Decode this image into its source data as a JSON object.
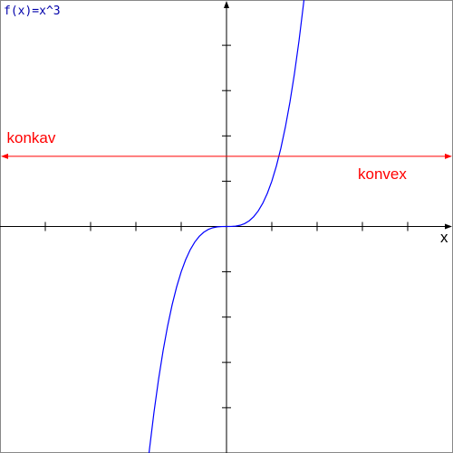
{
  "chart_data": {
    "type": "line",
    "title": "f(x)=x^3",
    "xlabel": "x",
    "ylabel": "",
    "xlim": [
      -5,
      5
    ],
    "ylim": [
      -5,
      5
    ],
    "x_ticks": [
      -4,
      -3,
      -2,
      -1,
      1,
      2,
      3,
      4
    ],
    "y_ticks": [
      -4,
      -3,
      -2,
      -1,
      1,
      2,
      3,
      4
    ],
    "grid": false,
    "series": [
      {
        "function": "x^3",
        "color": "#0000ff",
        "points": [
          [
            -1.7,
            -4.913
          ],
          [
            -1.6,
            -4.096
          ],
          [
            -1.5,
            -3.375
          ],
          [
            -1.4,
            -2.744
          ],
          [
            -1.3,
            -2.197
          ],
          [
            -1.2,
            -1.728
          ],
          [
            -1.1,
            -1.331
          ],
          [
            -1.0,
            -1.0
          ],
          [
            -0.9,
            -0.729
          ],
          [
            -0.8,
            -0.512
          ],
          [
            -0.7,
            -0.343
          ],
          [
            -0.6,
            -0.216
          ],
          [
            -0.5,
            -0.125
          ],
          [
            -0.4,
            -0.064
          ],
          [
            -0.3,
            -0.027
          ],
          [
            -0.2,
            -0.008
          ],
          [
            -0.1,
            -0.001
          ],
          [
            0,
            0
          ],
          [
            0.1,
            0.001
          ],
          [
            0.2,
            0.008
          ],
          [
            0.3,
            0.027
          ],
          [
            0.4,
            0.064
          ],
          [
            0.5,
            0.125
          ],
          [
            0.6,
            0.216
          ],
          [
            0.7,
            0.343
          ],
          [
            0.8,
            0.512
          ],
          [
            0.9,
            0.729
          ],
          [
            1.0,
            1.0
          ],
          [
            1.1,
            1.331
          ],
          [
            1.2,
            1.728
          ],
          [
            1.3,
            2.197
          ],
          [
            1.4,
            2.744
          ],
          [
            1.5,
            3.375
          ],
          [
            1.6,
            4.096
          ],
          [
            1.7,
            4.913
          ]
        ]
      }
    ],
    "reference_line": {
      "type": "double-arrow",
      "y": 1.55,
      "x_range": [
        -5,
        5
      ],
      "color": "#ff0000"
    },
    "annotations": [
      {
        "text": "konkav",
        "x": -4.85,
        "y": 1.85,
        "color": "#ff0000"
      },
      {
        "text": "konvex",
        "x": 2.9,
        "y": 1.05,
        "color": "#ff0000"
      }
    ]
  }
}
